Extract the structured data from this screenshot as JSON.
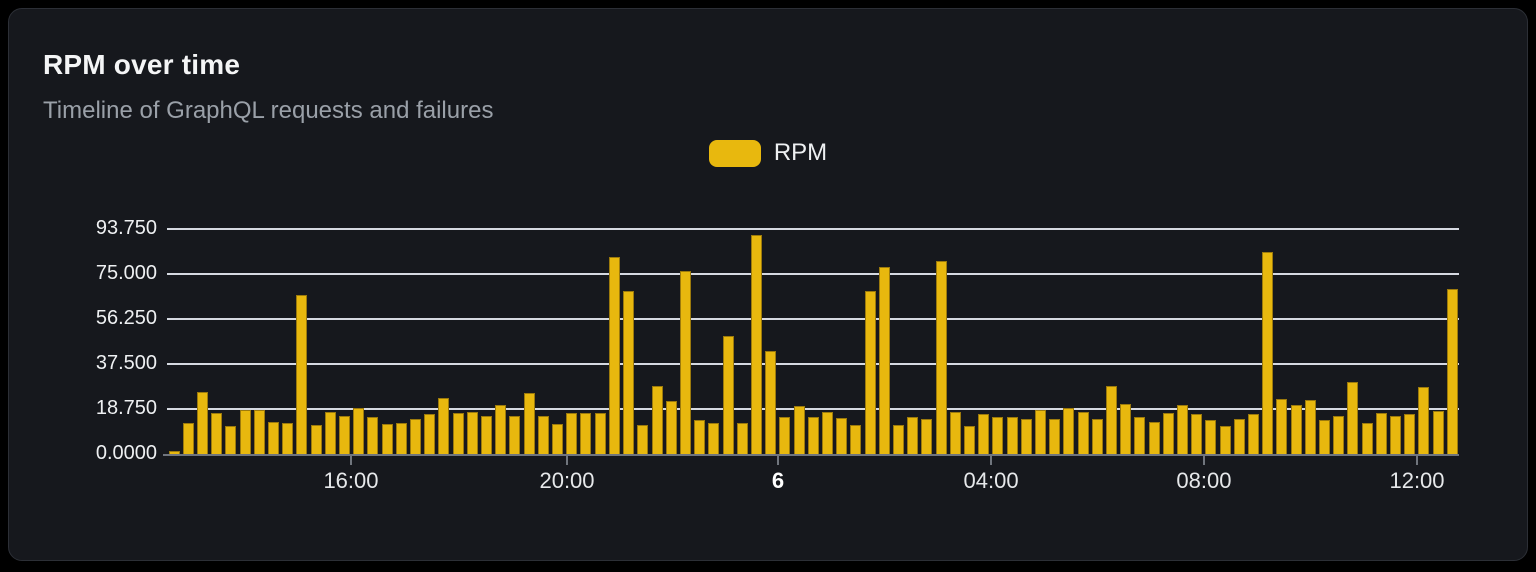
{
  "header": {
    "title": "RPM over time",
    "subtitle": "Timeline of GraphQL requests and failures"
  },
  "legend": {
    "items": [
      {
        "label": "RPM",
        "color": "#e8b80e"
      }
    ]
  },
  "chart_data": {
    "type": "bar",
    "title": "RPM over time",
    "subtitle": "Timeline of GraphQL requests and failures",
    "legend_position": "top-center",
    "grid": true,
    "bar_color": "#e8b80e",
    "y_axis": {
      "tick_labels": [
        "0.0000",
        "18.750",
        "37.500",
        "56.250",
        "75.000",
        "93.750"
      ],
      "tick_values": [
        0,
        18.75,
        37.5,
        56.25,
        75,
        93.75
      ],
      "range": [
        0,
        97
      ]
    },
    "x_axis": {
      "tick_labels": [
        "16:00",
        "20:00",
        "6",
        "04:00",
        "08:00",
        "12:00"
      ],
      "tick_positions_pct": [
        14.24,
        30.96,
        47.29,
        63.78,
        80.26,
        96.75
      ],
      "emphasized_label": "6"
    },
    "series": [
      {
        "name": "RPM",
        "values": [
          1,
          13,
          26,
          17,
          11.5,
          18.5,
          18.5,
          13.5,
          13,
          66,
          12,
          17.5,
          16,
          19,
          15.5,
          12.5,
          13,
          14.5,
          16.5,
          23.5,
          17,
          17.5,
          16,
          20.5,
          16,
          25.5,
          16,
          12.5,
          17,
          17,
          17,
          82,
          68,
          12,
          28.5,
          22,
          76,
          14,
          13,
          49,
          13,
          91,
          43,
          15.5,
          20,
          15.5,
          17.5,
          15,
          12,
          68,
          78,
          12,
          15.5,
          14.5,
          80.5,
          17.5,
          11.5,
          16.5,
          15.5,
          15.5,
          14.5,
          18.5,
          14.5,
          19,
          17.5,
          14.5,
          28.5,
          21,
          15.5,
          13.5,
          17,
          20.5,
          16.5,
          14,
          11.5,
          14.5,
          16.5,
          84,
          23,
          20.5,
          22.5,
          14,
          16,
          30,
          13,
          17,
          16,
          16.5,
          28,
          18,
          68.5
        ]
      }
    ]
  },
  "colors": {
    "page_background": "#000000",
    "card_background": "#16181d",
    "card_border": "#2c2f36",
    "bar": "#e8b80e",
    "bar_border": "#9c7a0c",
    "gridline": "#e7eaf2",
    "axis": "#70757d",
    "title_text": "#f4f5f6",
    "subtitle_text": "#9aa0a8",
    "axis_label_text": "#eef0f2"
  }
}
